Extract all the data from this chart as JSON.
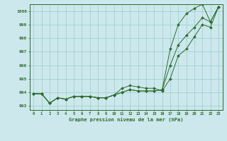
{
  "xlabel": "Graphe pression niveau de la mer (hPa)",
  "bg_color": "#cce8ec",
  "grid_color": "#99cccc",
  "line_color": "#2d6a2d",
  "x": [
    0,
    1,
    2,
    3,
    4,
    5,
    6,
    7,
    8,
    9,
    10,
    11,
    12,
    13,
    14,
    15,
    16,
    17,
    18,
    19,
    20,
    21,
    22,
    23
  ],
  "series1": [
    993.9,
    993.9,
    993.2,
    993.6,
    993.5,
    993.7,
    993.7,
    993.7,
    993.6,
    993.6,
    993.8,
    994.0,
    994.2,
    994.1,
    994.1,
    994.1,
    994.2,
    996.0,
    997.5,
    998.2,
    998.8,
    999.5,
    999.2,
    1000.3
  ],
  "series2": [
    993.9,
    993.9,
    993.2,
    993.6,
    993.5,
    993.7,
    993.7,
    993.7,
    993.6,
    993.6,
    993.8,
    994.0,
    994.2,
    994.1,
    994.1,
    994.1,
    994.2,
    997.2,
    999.0,
    999.8,
    1000.2,
    1000.5,
    999.2,
    1000.3
  ],
  "series3": [
    993.9,
    993.9,
    993.2,
    993.6,
    993.5,
    993.7,
    993.7,
    993.7,
    993.6,
    993.6,
    993.8,
    994.3,
    994.5,
    994.4,
    994.3,
    994.3,
    994.1,
    995.0,
    996.7,
    997.2,
    998.1,
    999.0,
    998.8,
    1000.3
  ],
  "ylim": [
    992.7,
    1000.5
  ],
  "yticks": [
    993,
    994,
    995,
    996,
    997,
    998,
    999,
    1000
  ],
  "xticks": [
    0,
    1,
    2,
    3,
    4,
    5,
    6,
    7,
    8,
    9,
    10,
    11,
    12,
    13,
    14,
    15,
    16,
    17,
    18,
    19,
    20,
    21,
    22,
    23
  ]
}
